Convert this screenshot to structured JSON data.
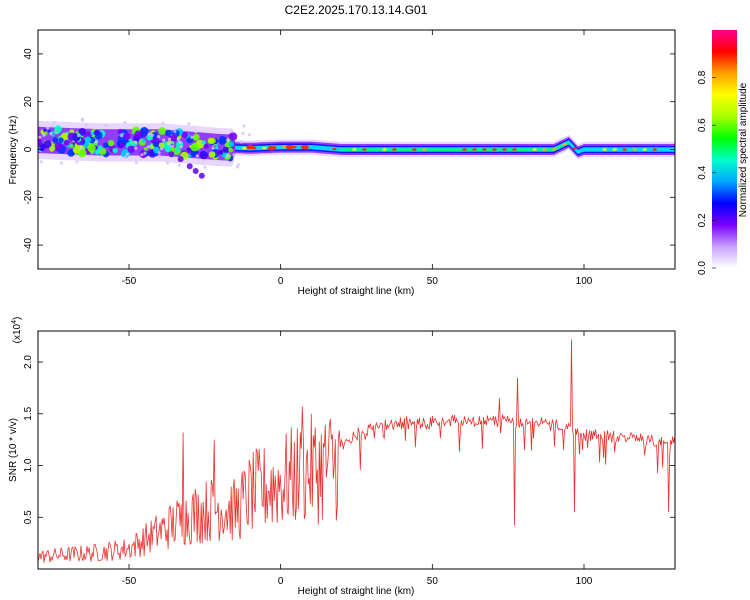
{
  "title": "C2E2.2025.170.13.14.G01",
  "chart_data": [
    {
      "type": "heatmap",
      "xlabel": "Height of straight line (km)",
      "ylabel": "Frequency (Hz)",
      "xlim": [
        -80,
        130
      ],
      "ylim": [
        -50,
        50
      ],
      "xticks": [
        -50,
        0,
        50,
        100
      ],
      "yticks": [
        -40,
        -20,
        0,
        20,
        40
      ],
      "colorbar": {
        "label": "Normalized spectral amplitude",
        "range": [
          0,
          1
        ],
        "ticks": [
          "0.0",
          "0.2",
          "0.4",
          "0.6",
          "0.8"
        ],
        "colors": [
          "#ffffff",
          "#c7a0ff",
          "#7a00ff",
          "#0000ff",
          "#00a8ff",
          "#00ffc8",
          "#00ff00",
          "#a8ff00",
          "#ffff00",
          "#ffa000",
          "#ff0000",
          "#ff0090"
        ]
      },
      "ridge": {
        "description_points_x": [
          -80,
          -60,
          -40,
          -30,
          -20,
          -10,
          0,
          10,
          20,
          60,
          90,
          95,
          98,
          100,
          130
        ],
        "description_points_y": [
          4,
          3,
          3,
          2,
          1,
          0.5,
          1,
          1,
          0,
          0,
          0,
          3,
          -1,
          0,
          0
        ]
      },
      "branch": {
        "x": [
          -36,
          -33,
          -30,
          -28,
          -26
        ],
        "y": [
          -2,
          -4,
          -7,
          -9,
          -11
        ]
      }
    },
    {
      "type": "line",
      "xlabel": "Height of straight line (km)",
      "ylabel": "SNR (10 * v/v)",
      "yscale_label": "(x10",
      "yscale_exp": "4",
      "yscale_close": ")",
      "xlim": [
        -80,
        130
      ],
      "ylim": [
        0,
        2.3
      ],
      "xticks": [
        -50,
        0,
        50,
        100
      ],
      "yticks": [
        "0.5",
        "1.0",
        "1.5",
        "2.0"
      ],
      "series": [
        {
          "color": "#e8302c",
          "envelope_x": [
            -80,
            -60,
            -50,
            -40,
            -30,
            -20,
            -15,
            -10,
            0,
            10,
            20,
            30,
            40,
            50,
            60,
            70,
            80,
            90,
            95,
            100,
            110,
            120,
            130
          ],
          "envelope_y": [
            0.15,
            0.2,
            0.25,
            0.45,
            0.65,
            0.75,
            0.7,
            0.9,
            1.05,
            1.2,
            1.3,
            1.42,
            1.45,
            1.46,
            1.47,
            1.48,
            1.47,
            1.44,
            1.4,
            1.35,
            1.32,
            1.3,
            1.28
          ],
          "spikes": [
            {
              "x": -32,
              "y": 1.32
            },
            {
              "x": -22,
              "y": 1.25
            },
            {
              "x": 7,
              "y": 1.57
            },
            {
              "x": 72,
              "y": 1.65
            },
            {
              "x": 78,
              "y": 1.85
            },
            {
              "x": 77,
              "y": 0.42
            },
            {
              "x": 96,
              "y": 2.22
            },
            {
              "x": 97,
              "y": 0.55
            },
            {
              "x": 128,
              "y": 0.55
            }
          ]
        }
      ]
    }
  ]
}
